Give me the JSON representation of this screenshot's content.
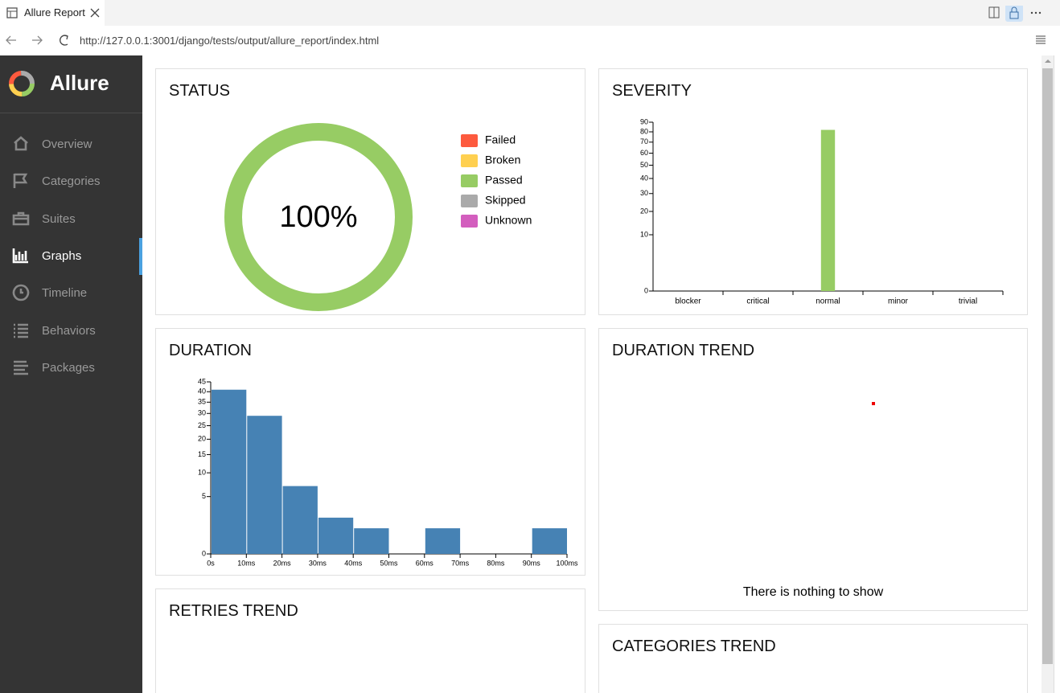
{
  "browser": {
    "tab_title": "Allure Report",
    "url": "http://127.0.0.1:3001/django/tests/output/allure_report/index.html"
  },
  "sidebar": {
    "brand": "Allure",
    "items": [
      "Overview",
      "Categories",
      "Suites",
      "Graphs",
      "Timeline",
      "Behaviors",
      "Packages"
    ],
    "active": 3
  },
  "chart_data": [
    {
      "type": "pie",
      "title": "STATUS",
      "categories": [
        "Failed",
        "Broken",
        "Passed",
        "Skipped",
        "Unknown"
      ],
      "values": [
        0,
        0,
        100,
        0,
        0
      ],
      "value_labels": [
        null,
        null,
        "100%",
        null,
        null
      ],
      "colors": [
        "#fd5a3e",
        "#ffd050",
        "#97cc64",
        "#aaaaaa",
        "#d35ebe"
      ]
    },
    {
      "type": "bar",
      "title": "SEVERITY",
      "categories": [
        "blocker",
        "critical",
        "normal",
        "minor",
        "trivial"
      ],
      "values": [
        0,
        0,
        82,
        0,
        0
      ],
      "color": "#97cc64",
      "ylim": [
        0,
        90
      ],
      "yticks": [
        0,
        10,
        20,
        30,
        40,
        50,
        60,
        70,
        80,
        90
      ],
      "scale": "sqrt"
    },
    {
      "type": "histogram",
      "title": "DURATION",
      "bins": [
        0,
        10,
        20,
        30,
        40,
        50,
        60,
        70,
        80,
        90,
        100
      ],
      "values": [
        41,
        29,
        7,
        2,
        1,
        0,
        1,
        0,
        0,
        1
      ],
      "color": "#4682b4",
      "xlim": [
        0,
        100
      ],
      "xticks": [
        {
          "value": 0,
          "label": "0s"
        },
        {
          "value": 10,
          "label": "10ms"
        },
        {
          "value": 20,
          "label": "20ms"
        },
        {
          "value": 30,
          "label": "30ms"
        },
        {
          "value": 40,
          "label": "40ms"
        },
        {
          "value": 50,
          "label": "50ms"
        },
        {
          "value": 60,
          "label": "60ms"
        },
        {
          "value": 70,
          "label": "70ms"
        },
        {
          "value": 80,
          "label": "80ms"
        },
        {
          "value": 90,
          "label": "90ms"
        },
        {
          "value": 100,
          "label": "100ms"
        }
      ],
      "ylim": [
        0,
        45
      ],
      "yticks": [
        0,
        5,
        10,
        15,
        20,
        25,
        30,
        35,
        40,
        45
      ],
      "scale": "sqrt"
    },
    {
      "type": "trend",
      "title": "DURATION TREND",
      "message": "There is nothing to show"
    },
    {
      "type": "trend",
      "title": "RETRIES TREND"
    },
    {
      "type": "trend",
      "title": "CATEGORIES TREND"
    }
  ]
}
